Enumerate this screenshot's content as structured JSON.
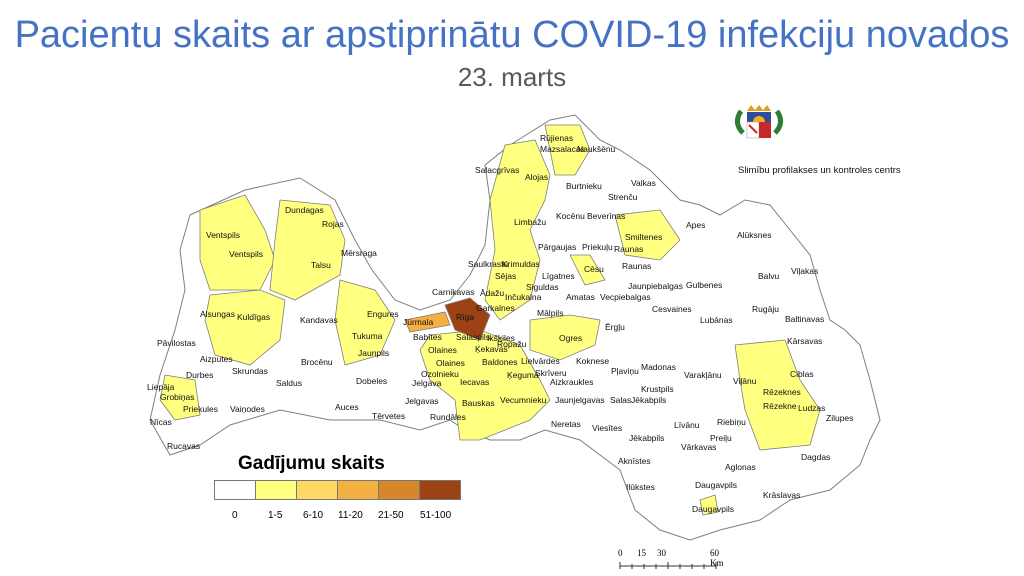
{
  "title": "Pacientu skaits ar apstiprinātu COVID-19 infekciju novados",
  "subtitle": "23. marts",
  "agency": "Slimību profilakses un kontroles centrs",
  "colors": {
    "title": "#4472c4",
    "c0": "#ffffff",
    "c1": "#ffff80",
    "c2": "#ffd966",
    "c3": "#f4b042",
    "c4": "#d8862a",
    "c5": "#9c4214",
    "border": "#7f7f7f"
  },
  "legend": {
    "title": "Gadījumu skaits",
    "classes": [
      {
        "label": "0",
        "color": "#ffffff"
      },
      {
        "label": "1-5",
        "color": "#ffff80"
      },
      {
        "label": "6-10",
        "color": "#ffd966"
      },
      {
        "label": "11-20",
        "color": "#f4b042"
      },
      {
        "label": "21-50",
        "color": "#d8862a"
      },
      {
        "label": "51-100",
        "color": "#9c4214"
      }
    ]
  },
  "scale": {
    "ticks": [
      "0",
      "15",
      "30",
      "60 Km"
    ]
  },
  "labels": [
    "Rūjienas",
    "Naukšēnu",
    "Mazsalacas",
    "Salacgrīvas",
    "Alojas",
    "Burtnieku",
    "Valkas",
    "Strenču",
    "Dundagas",
    "Limbažu",
    "Kocēnu",
    "Beverīnas",
    "Rojas",
    "Ventspils",
    "Ventspils",
    "Apes",
    "Alūksnes",
    "Smiltenes",
    "Mērsraga",
    "Talsu",
    "Pārgaujas",
    "Priekuļu",
    "Raunas",
    "Raunas",
    "Saulkrastu",
    "Krimuldas",
    "Sējas",
    "Līgatnes",
    "Cēsu",
    "Jaunpiebalgas",
    "Gulbenes",
    "Balvu",
    "Viļakas",
    "Siguldas",
    "Inčukalna",
    "Amatas",
    "Vecpiebalgas",
    "Carnikavas",
    "Ādažu",
    "Garkalnes",
    "Mālpils",
    "Cesvaines",
    "Rugāju",
    "Alsungas",
    "Kuldīgas",
    "Kandavas",
    "Engures",
    "Jūrmala",
    "Rīga",
    "Lubānas",
    "Baltinavas",
    "Babītes",
    "Ropažu",
    "Salaspils",
    "Ērgļu",
    "Kārsavas",
    "Pāvilostas",
    "Tukuma",
    "Ikšķiles",
    "Ogres",
    "Madonas",
    "Aizputes",
    "Jaunpils",
    "Brocēnu",
    "Olaines",
    "Olaines",
    "Ķekavas",
    "Baldones",
    "Lielvārdes",
    "Koknese",
    "Varakļānu",
    "Durbes",
    "Skrundas",
    "Saldus",
    "Dobeles",
    "Ozolnieku",
    "Ķeguma",
    "Skrīveru",
    "Pļaviņu",
    "Rēzeknes",
    "Ciblas",
    "Liepāja",
    "Grobiņas",
    "Jelgava",
    "Iecavas",
    "Aizkraukles",
    "Krustpils",
    "Viļānu",
    "Rēzekne",
    "Priekules",
    "Vaiņodes",
    "Auces",
    "Jelgavas",
    "Vecumnieku",
    "Jaunjelgavas",
    "Salas",
    "Jēkabpils",
    "Ludzas",
    "Zilupes",
    "Nīcas",
    "Tērvetes",
    "Rundāles",
    "Bauskas",
    "Neretas",
    "Viesītes",
    "Līvānu",
    "Riebiņu",
    "Jēkabpils",
    "Preiļu",
    "Rucavas",
    "Vārkavas",
    "Dagdas",
    "Aknīstes",
    "Aglonas",
    "Ilūkstes",
    "Daugavpils",
    "Krāslavas",
    "Daugavpils"
  ]
}
